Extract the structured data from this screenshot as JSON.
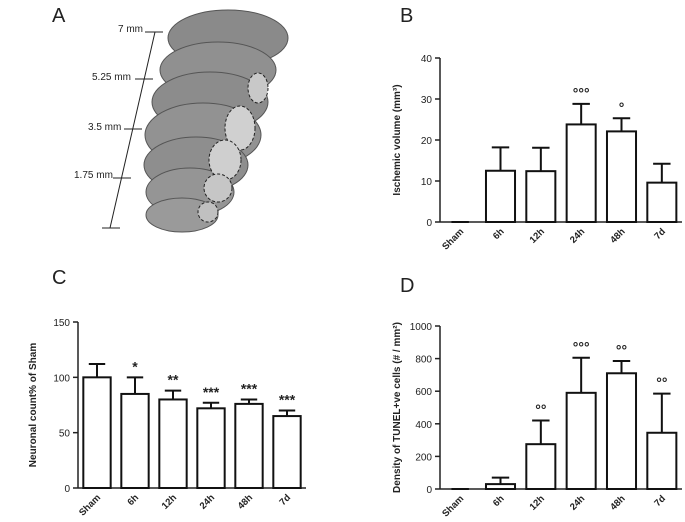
{
  "figure_a": {
    "panel": "A",
    "scale_labels": [
      "7 mm",
      "5.25 mm",
      "3.5 mm",
      "1.75 mm"
    ]
  },
  "chart_data": [
    {
      "type": "bar",
      "panel": "B",
      "ylabel": "Ischemic volume (mm³)",
      "categories": [
        "Sham",
        "6h",
        "12h",
        "24h",
        "48h",
        "7d"
      ],
      "values": [
        0,
        12.5,
        12.4,
        23.8,
        22.1,
        9.6
      ],
      "errors": [
        0,
        5.7,
        5.7,
        5,
        3.2,
        4.6
      ],
      "annotations": [
        null,
        null,
        null,
        "°°°",
        "°",
        null
      ],
      "ylim": [
        0,
        40
      ],
      "yticks": [
        0,
        10,
        20,
        30,
        40
      ],
      "color": "#ffffff"
    },
    {
      "type": "bar",
      "panel": "C",
      "ylabel": "Neuronal count% of Sham",
      "categories": [
        "Sham",
        "6h",
        "12h",
        "24h",
        "48h",
        "7d"
      ],
      "values": [
        100,
        85,
        80,
        72,
        76,
        65
      ],
      "errors": [
        12,
        15,
        8,
        5,
        4,
        5
      ],
      "annotations": [
        null,
        "*",
        "**",
        "***",
        "***",
        "***"
      ],
      "ylim": [
        0,
        150
      ],
      "yticks": [
        0,
        50,
        100,
        150
      ],
      "color": "#ffffff"
    },
    {
      "type": "bar",
      "panel": "D",
      "ylabel": "Density of TUNEL+ve cells (# / mm²)",
      "categories": [
        "Sham",
        "6h",
        "12h",
        "24h",
        "48h",
        "7d"
      ],
      "values": [
        0,
        30,
        275,
        590,
        710,
        345
      ],
      "errors": [
        0,
        40,
        145,
        215,
        75,
        240
      ],
      "annotations": [
        null,
        null,
        "°°",
        "°°°",
        "°°",
        "°°"
      ],
      "ylim": [
        0,
        1000
      ],
      "yticks": [
        0,
        200,
        400,
        600,
        800,
        1000
      ],
      "color": "#ffffff"
    }
  ]
}
